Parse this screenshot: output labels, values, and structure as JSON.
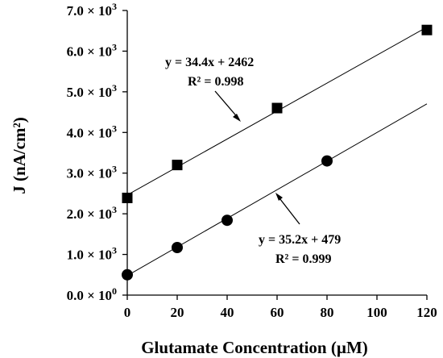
{
  "chart_data": {
    "type": "scatter",
    "title": "",
    "xlabel": "Glutamate Concentration (µM)",
    "ylabel": "J (nA/cm²)",
    "xlim": [
      0,
      120
    ],
    "ylim": [
      0,
      7000
    ],
    "x_ticks": [
      "0",
      "20",
      "40",
      "60",
      "80",
      "100",
      "120"
    ],
    "y_tick_values": [
      0,
      1000,
      2000,
      3000,
      4000,
      5000,
      6000,
      7000
    ],
    "y_ticks": [
      {
        "mantissa": "0.0 × 10",
        "exp": "0"
      },
      {
        "mantissa": "1.0 × 10",
        "exp": "3"
      },
      {
        "mantissa": "2.0 × 10",
        "exp": "3"
      },
      {
        "mantissa": "3.0 × 10",
        "exp": "3"
      },
      {
        "mantissa": "4.0 × 10",
        "exp": "3"
      },
      {
        "mantissa": "5.0 × 10",
        "exp": "3"
      },
      {
        "mantissa": "6.0 × 10",
        "exp": "3"
      },
      {
        "mantissa": "7.0 × 10",
        "exp": "3"
      }
    ],
    "grid": false,
    "legend": "none",
    "series": [
      {
        "marker": "square",
        "points": [
          {
            "x": 0,
            "y": 2390
          },
          {
            "x": 20,
            "y": 3200
          },
          {
            "x": 60,
            "y": 4600
          },
          {
            "x": 120,
            "y": 6520
          }
        ],
        "fit": {
          "slope": 34.4,
          "intercept": 2462,
          "equation": "y = 34.4x + 2462",
          "r2": "R² = 0.998"
        }
      },
      {
        "marker": "circle",
        "points": [
          {
            "x": 0,
            "y": 500
          },
          {
            "x": 20,
            "y": 1170
          },
          {
            "x": 40,
            "y": 1840
          },
          {
            "x": 80,
            "y": 3300
          }
        ],
        "fit": {
          "slope": 35.2,
          "intercept": 479,
          "equation": "y = 35.2x + 479",
          "r2": "R² = 0.999"
        }
      }
    ]
  }
}
